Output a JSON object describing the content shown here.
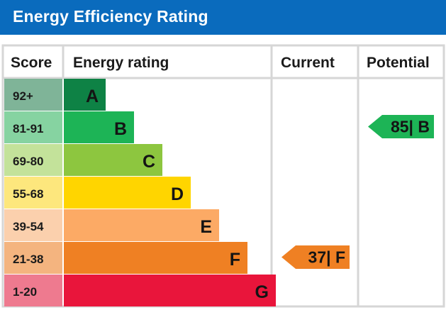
{
  "header": {
    "title": "Energy Efficiency Rating"
  },
  "columns": {
    "score": "Score",
    "rating": "Energy rating",
    "current": "Current",
    "potential": "Potential"
  },
  "chart_data": {
    "type": "bar",
    "bands": [
      {
        "score": "92+",
        "letter": "A",
        "color": "#0e8245",
        "score_bg": "#7fb498",
        "rank": 1
      },
      {
        "score": "81-91",
        "letter": "B",
        "color": "#1db456",
        "score_bg": "#86d3a1",
        "rank": 2
      },
      {
        "score": "69-80",
        "letter": "C",
        "color": "#8dc63f",
        "score_bg": "#c3e29a",
        "rank": 3
      },
      {
        "score": "55-68",
        "letter": "D",
        "color": "#ffd500",
        "score_bg": "#fde77d",
        "rank": 4
      },
      {
        "score": "39-54",
        "letter": "E",
        "color": "#fcaa65",
        "score_bg": "#fbd0ad",
        "rank": 5
      },
      {
        "score": "21-38",
        "letter": "F",
        "color": "#ef8023",
        "score_bg": "#f4b47f",
        "rank": 6
      },
      {
        "score": "1-20",
        "letter": "G",
        "color": "#e9153b",
        "score_bg": "#ee7a8f",
        "rank": 7
      }
    ],
    "current": {
      "value": 37,
      "band": "F",
      "label": "37| F",
      "color": "#ef8023"
    },
    "potential": {
      "value": 85,
      "band": "B",
      "label": "85| B",
      "color": "#1db456"
    }
  }
}
